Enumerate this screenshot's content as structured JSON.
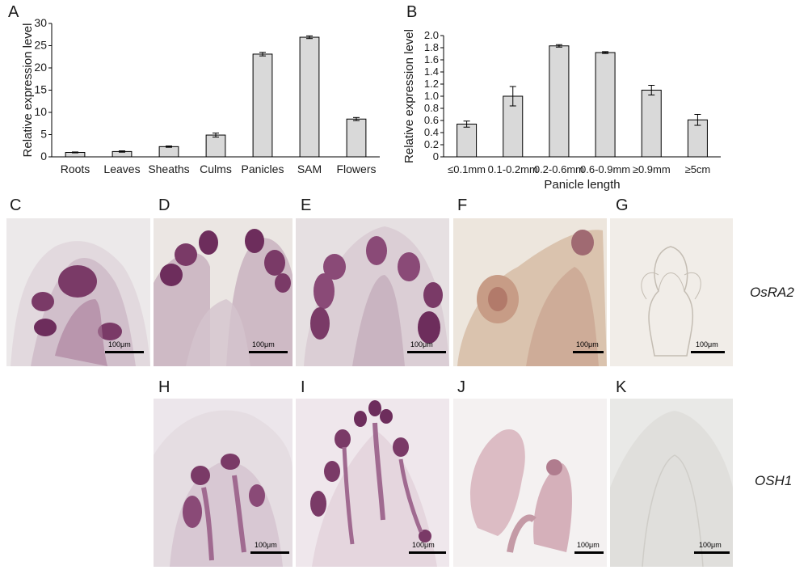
{
  "panels": {
    "A": "A",
    "B": "B",
    "C": "C",
    "D": "D",
    "E": "E",
    "F": "F",
    "G": "G",
    "H": "H",
    "I": "I",
    "J": "J",
    "K": "K"
  },
  "scale_bar_text": "100μm",
  "gene_labels": {
    "row1": "OsRA2",
    "row2": "OSH1"
  },
  "chart_data": [
    {
      "type": "bar",
      "panel": "A",
      "ylabel": "Relative expression level",
      "xlabel": "",
      "ylim": [
        0,
        30
      ],
      "yticks": [
        0,
        5,
        10,
        15,
        20,
        25,
        30
      ],
      "categories": [
        "Roots",
        "Leaves",
        "Sheaths",
        "Culms",
        "Panicles",
        "SAM",
        "Flowers"
      ],
      "values": [
        1.0,
        1.2,
        2.3,
        4.9,
        23.1,
        26.9,
        8.5
      ],
      "errors": [
        0.1,
        0.15,
        0.15,
        0.45,
        0.4,
        0.3,
        0.35
      ],
      "bar_color": "#d9d9d9",
      "grid": false
    },
    {
      "type": "bar",
      "panel": "B",
      "ylabel": "Relative expression level",
      "xlabel": "Panicle length",
      "ylim": [
        0,
        2.0
      ],
      "yticks": [
        "0",
        "0.2",
        "0.4",
        "0.6",
        "0.8",
        "1.0",
        "1.2",
        "1.4",
        "1.6",
        "1.8",
        "2.0"
      ],
      "categories": [
        "≤0.1mm",
        "0.1-0.2mm",
        "0.2-0.6mm",
        "0.6-0.9mm",
        "≥0.9mm",
        "≥5cm"
      ],
      "values": [
        0.54,
        1.0,
        1.83,
        1.72,
        1.1,
        0.61
      ],
      "errors": [
        0.05,
        0.16,
        0.02,
        0.015,
        0.08,
        0.09
      ],
      "bar_color": "#d9d9d9",
      "grid": false
    }
  ]
}
